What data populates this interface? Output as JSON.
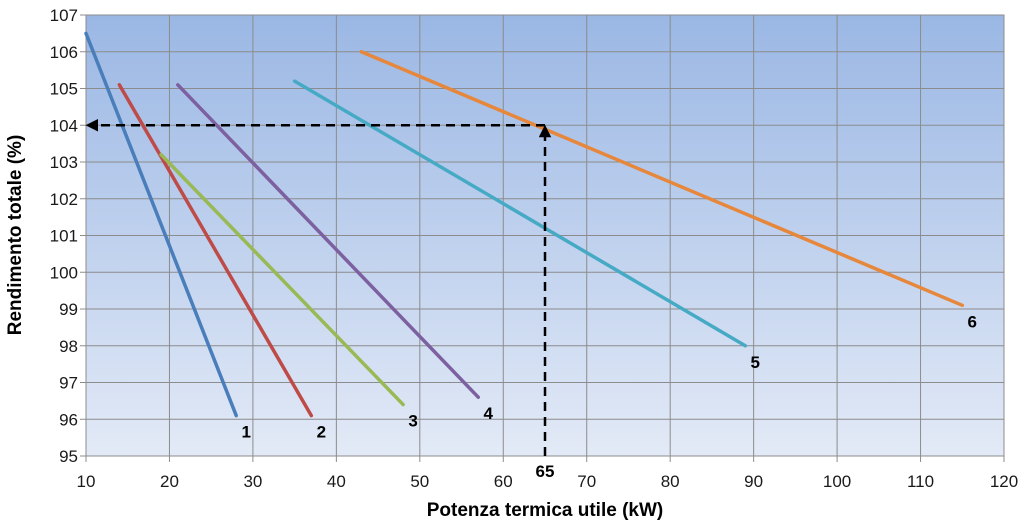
{
  "chart_data": {
    "type": "line",
    "title": "",
    "xlabel": "Potenza termica utile (kW)",
    "ylabel": "Rendimento totale (%)",
    "xlim": [
      10,
      120
    ],
    "ylim": [
      95,
      107
    ],
    "xticks": [
      10,
      20,
      30,
      40,
      50,
      60,
      70,
      80,
      90,
      100,
      110,
      120
    ],
    "yticks": [
      95,
      96,
      97,
      98,
      99,
      100,
      101,
      102,
      103,
      104,
      105,
      106,
      107
    ],
    "grid": true,
    "legend": "none",
    "series": [
      {
        "name": "1",
        "color": "#4a7ebb",
        "points": [
          [
            10,
            106.5
          ],
          [
            28,
            96.1
          ]
        ]
      },
      {
        "name": "2",
        "color": "#be4b48",
        "points": [
          [
            14,
            105.1
          ],
          [
            37,
            96.1
          ]
        ]
      },
      {
        "name": "3",
        "color": "#98b954",
        "points": [
          [
            19,
            103.2
          ],
          [
            48,
            96.4
          ]
        ]
      },
      {
        "name": "4",
        "color": "#7d60a0",
        "points": [
          [
            21,
            105.1
          ],
          [
            57,
            96.6
          ]
        ]
      },
      {
        "name": "5",
        "color": "#46aac5",
        "points": [
          [
            35,
            105.2
          ],
          [
            89,
            98.0
          ]
        ]
      },
      {
        "name": "6",
        "color": "#e6873c",
        "points": [
          [
            43,
            106.0
          ],
          [
            115,
            99.1
          ]
        ]
      }
    ],
    "annotation": {
      "label": "65",
      "x": 65,
      "y": 104,
      "style": "dashed-arrows"
    }
  }
}
